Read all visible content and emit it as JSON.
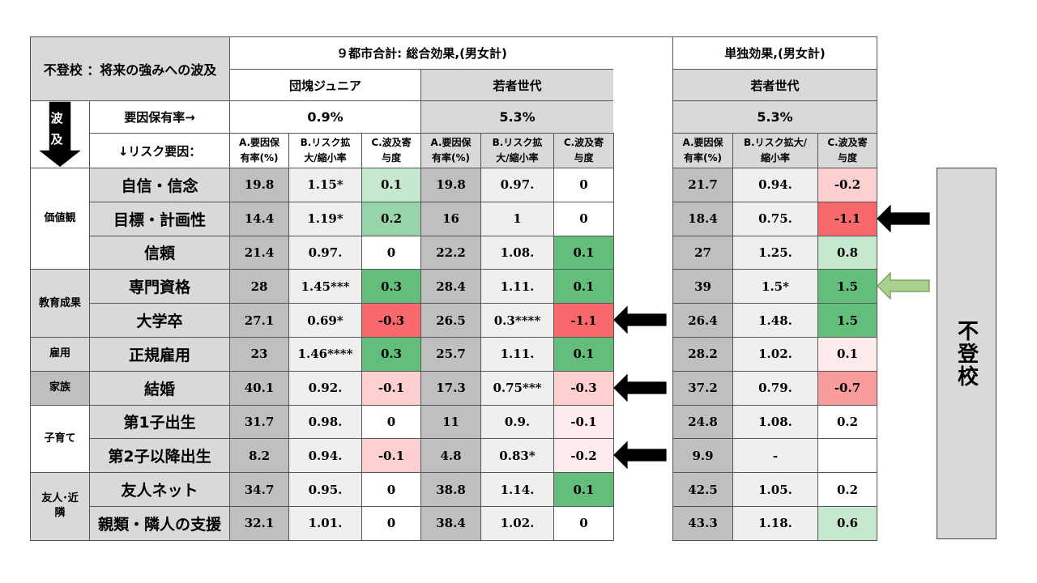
{
  "title": "不登校 ：将来の強みへの波及",
  "group_nine_cities": "９都市合計: 総合効果,(男女計)",
  "group_single": "単独効果,(男女計)",
  "cohort_dankai_jr": "団塊ジュニア",
  "cohort_wakamono": "若者世代",
  "ripple_label": [
    "波",
    "及"
  ],
  "rate_label": "要因保有率→",
  "risk_label": "↓リスク要因：",
  "rates": [
    "0.9%",
    "5.3%",
    "5.3%"
  ],
  "col_headers": {
    "A": [
      "A.要因保",
      "有率(%)"
    ],
    "B": [
      "B.リスク拡",
      "大/縮小率"
    ],
    "C": [
      "C.波及寄",
      "与度"
    ],
    "B_single": [
      "B.リスク拡大/",
      "縮小率"
    ]
  },
  "categories": [
    {
      "label": [
        "価値観"
      ]
    },
    {
      "label": [
        "教育成果"
      ]
    },
    {
      "label": [
        "雇用"
      ]
    },
    {
      "label": [
        "家族"
      ]
    },
    {
      "label": [
        "子育て"
      ]
    },
    {
      "label": [
        "友人･近",
        "隣"
      ]
    }
  ],
  "rows": [
    {
      "label": "自信・信念",
      "vals": [
        "19.8",
        "1.15*",
        "0.1",
        "19.8",
        "0.97.",
        "0",
        "21.7",
        "0.94.",
        "-0.2"
      ]
    },
    {
      "label": "目標・計画性",
      "vals": [
        "14.4",
        "1.19*",
        "0.2",
        "16",
        "1",
        "0",
        "18.4",
        "0.75.",
        "-1.1"
      ]
    },
    {
      "label": "信頼",
      "vals": [
        "21.4",
        "0.97.",
        "0",
        "22.2",
        "1.08.",
        "0.1",
        "27",
        "1.25.",
        "0.8"
      ]
    },
    {
      "label": "専門資格",
      "vals": [
        "28",
        "1.45***",
        "0.3",
        "28.4",
        "1.11.",
        "0.1",
        "39",
        "1.5*",
        "1.5"
      ]
    },
    {
      "label": "大学卒",
      "vals": [
        "27.1",
        "0.69*",
        "-0.3",
        "26.5",
        "0.3****",
        "-1.1",
        "26.4",
        "1.48.",
        "1.5"
      ]
    },
    {
      "label": "正規雇用",
      "vals": [
        "23",
        "1.46****",
        "0.3",
        "25.7",
        "1.11.",
        "0.1",
        "28.2",
        "1.02.",
        "0.1"
      ]
    },
    {
      "label": "結婚",
      "vals": [
        "40.1",
        "0.92.",
        "-0.1",
        "17.3",
        "0.75***",
        "-0.3",
        "37.2",
        "0.79.",
        "-0.7"
      ]
    },
    {
      "label": "第1子出生",
      "vals": [
        "31.7",
        "0.98.",
        "0",
        "11",
        "0.9.",
        "-0.1",
        "24.8",
        "1.08.",
        "0.2"
      ]
    },
    {
      "label": "第2子以降出生",
      "vals": [
        "8.2",
        "0.94.",
        "-0.1",
        "4.8",
        "0.83*",
        "-0.2",
        "9.9",
        "-",
        ""
      ]
    },
    {
      "label": "友人ネット",
      "vals": [
        "34.7",
        "0.95.",
        "0",
        "38.8",
        "1.14.",
        "0.1",
        "42.5",
        "1.05.",
        "0.2"
      ]
    },
    {
      "label": "親類・隣人の支援",
      "vals": [
        "32.1",
        "1.01.",
        "0",
        "38.4",
        "1.02.",
        "0",
        "43.3",
        "1.18.",
        "0.6"
      ]
    }
  ],
  "side_label": "不登校",
  "colors": {
    "grey_dark": "#bfbfbf",
    "grey_mid": "#d9d9d9",
    "grey_light": "#efefef",
    "green_strong": "#63be7b",
    "green_mid": "#99d4a8",
    "green_light": "#c6e8cf",
    "red_strong": "#f8696b",
    "red_mid": "#fa9c9d",
    "red_light": "#fcd0d1",
    "red_faint": "#fdeaea",
    "white": "#ffffff",
    "arrow_black": "#000000",
    "arrow_green": "#a9d08e"
  },
  "arrows": [
    {
      "row": 1,
      "side": "right",
      "color": "black"
    },
    {
      "row": 3,
      "side": "right",
      "color": "green"
    },
    {
      "row": 4,
      "side": "middle",
      "color": "black"
    },
    {
      "row": 6,
      "side": "middle",
      "color": "black"
    },
    {
      "row": 8,
      "side": "middle",
      "color": "black"
    }
  ]
}
